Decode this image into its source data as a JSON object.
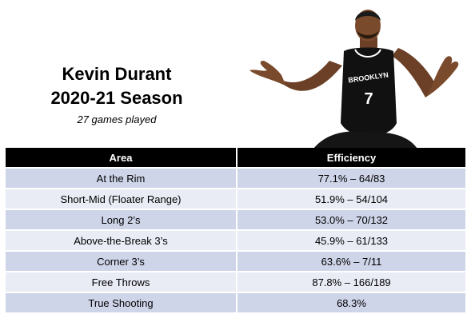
{
  "header": {
    "name": "Kevin Durant",
    "season": "2020-21 Season",
    "games": "27 games played"
  },
  "colors": {
    "header_bg": "#000000",
    "row_dark": "#cfd5e9",
    "row_light": "#e9ebf5",
    "jersey": "#111111"
  },
  "photo": {
    "jersey_text": "BROOKLYN",
    "jersey_number": "7"
  },
  "table": {
    "headers": {
      "area": "Area",
      "efficiency": "Efficiency"
    },
    "rows": [
      {
        "area": "At the Rim",
        "efficiency": "77.1% – 64/83"
      },
      {
        "area": "Short-Mid (Floater Range)",
        "efficiency": "51.9% – 54/104"
      },
      {
        "area": "Long 2’s",
        "efficiency": "53.0% – 70/132"
      },
      {
        "area": "Above-the-Break 3’s",
        "efficiency": "45.9% – 61/133"
      },
      {
        "area": "Corner 3’s",
        "efficiency": "63.6% – 7/11"
      },
      {
        "area": "Free Throws",
        "efficiency": "87.8% – 166/189"
      },
      {
        "area": "True Shooting",
        "efficiency": "68.3%"
      }
    ]
  }
}
